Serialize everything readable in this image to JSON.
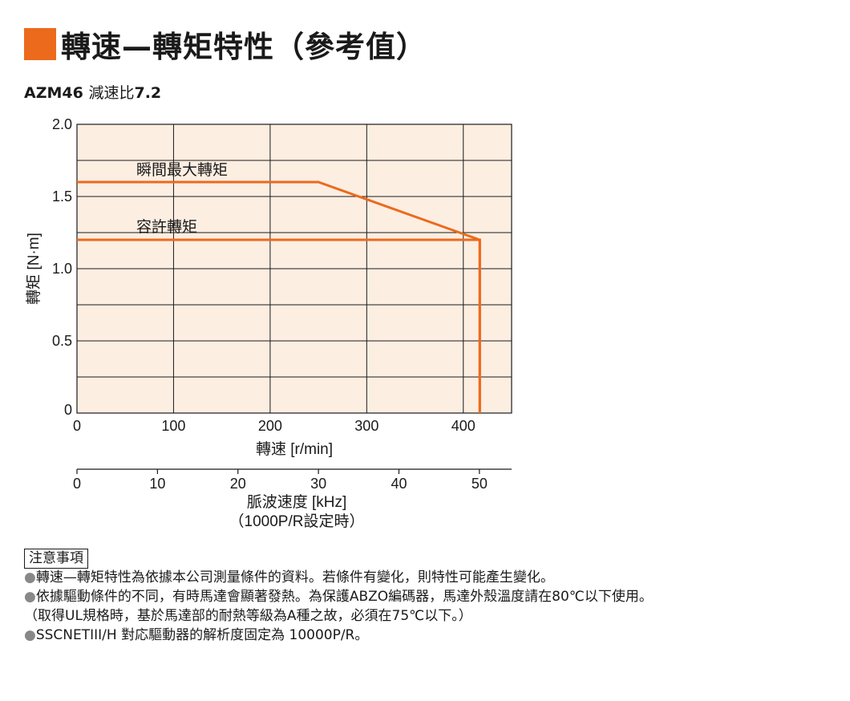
{
  "header": {
    "title": "轉速—轉矩特性（參考值）",
    "accent_color": "#ec6a1c",
    "subtitle_model": "AZM46",
    "subtitle_label": "減速比",
    "subtitle_ratio": "7.2"
  },
  "chart_data": {
    "type": "line",
    "title": "",
    "xlabel": "轉速 [r/min]",
    "ylabel": "轉矩 [N·m]",
    "xlim": [
      0,
      450
    ],
    "ylim": [
      0,
      2.0
    ],
    "x_ticks": [
      0,
      100,
      200,
      300,
      400
    ],
    "x_tick_labels": [
      "0",
      "100",
      "200",
      "300",
      "400"
    ],
    "y_ticks": [
      0,
      0.5,
      1.0,
      1.5,
      2.0
    ],
    "y_tick_labels": [
      "0",
      "0.5",
      "1.0",
      "1.5",
      "2.0"
    ],
    "x_grid_step": 100,
    "y_grid_step": 0.25,
    "grid": true,
    "background_color": "#fdeee2",
    "line_color": "#ec6a1c",
    "series": [
      {
        "name": "瞬間最大轉矩",
        "x": [
          0,
          250,
          417,
          417
        ],
        "y": [
          1.6,
          1.6,
          1.2,
          0
        ]
      },
      {
        "name": "容許轉矩",
        "x": [
          0,
          417,
          417
        ],
        "y": [
          1.2,
          1.2,
          0
        ]
      }
    ],
    "secondary_axis": {
      "label_line1": "脈波速度 [kHz]",
      "label_line2": "（1000P/R設定時）",
      "ticks": [
        0,
        10,
        20,
        30,
        40,
        50
      ],
      "tick_labels": [
        "0",
        "10",
        "20",
        "30",
        "40",
        "50"
      ],
      "khz_per_rpm": 0.12
    }
  },
  "notes": {
    "heading": "注意事項",
    "bullet": "●",
    "items": [
      "轉速—轉矩特性為依據本公司測量條件的資料。若條件有變化，則特性可能產生變化。",
      "依據驅動條件的不同，有時馬達會顯著發熱。為保護ABZO編碼器，馬達外殼溫度請在80℃以下使用。",
      "SSCNETIII/H 對応驅動器的解析度固定為 10000P/R。"
    ],
    "continuation": "（取得UL規格時，基於馬達部的耐熱等級為A種之故，必須在75℃以下。）"
  }
}
